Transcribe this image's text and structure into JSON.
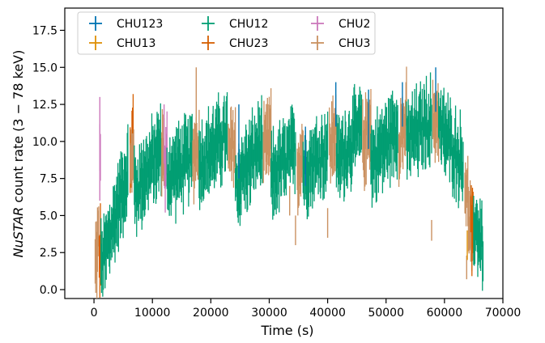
{
  "chart_data": {
    "type": "scatter",
    "xlabel": "Time (s)",
    "ylabel_prefix": "NuSTAR",
    "ylabel_suffix": " count rate (3 − 78 keV)",
    "xlim": [
      -5000,
      70000
    ],
    "ylim": [
      -0.6,
      19.0
    ],
    "xticks": [
      0,
      10000,
      20000,
      30000,
      40000,
      50000,
      60000,
      70000
    ],
    "xtick_labels": [
      "0",
      "10000",
      "20000",
      "30000",
      "40000",
      "50000",
      "60000",
      "70000"
    ],
    "yticks": [
      0.0,
      2.5,
      5.0,
      7.5,
      10.0,
      12.5,
      15.0,
      17.5
    ],
    "ytick_labels": [
      "0.0",
      "2.5",
      "5.0",
      "7.5",
      "10.0",
      "12.5",
      "15.0",
      "17.5"
    ],
    "legend_position": "top-left",
    "series": [
      {
        "name": "CHU123",
        "color": "#0173b2"
      },
      {
        "name": "CHU13",
        "color": "#de8f05"
      },
      {
        "name": "CHU12",
        "color": "#029e73"
      },
      {
        "name": "CHU23",
        "color": "#d55e00"
      },
      {
        "name": "CHU2",
        "color": "#cc78bc"
      },
      {
        "name": "CHU3",
        "color": "#ca9161"
      }
    ],
    "segments": [
      {
        "series": "CHU3",
        "x": [
          200,
          800
        ],
        "y": [
          1.5,
          3.5
        ]
      },
      {
        "series": "CHU23",
        "x": [
          900,
          1200
        ],
        "y": [
          2.0,
          3.0
        ]
      },
      {
        "series": "CHU2",
        "x": [
          1000,
          1100
        ],
        "y": [
          9.0,
          9.5
        ]
      },
      {
        "series": "CHU12",
        "x": [
          1200,
          5800
        ],
        "y": [
          1.5,
          8.0
        ]
      },
      {
        "series": "CHU23",
        "x": [
          6200,
          6700
        ],
        "y": [
          8.5,
          10.5
        ]
      },
      {
        "series": "CHU3",
        "x": [
          6200,
          6800
        ],
        "y": [
          8.0,
          10.0
        ]
      },
      {
        "series": "CHU12",
        "x": [
          6900,
          11500
        ],
        "y": [
          6.5,
          9.5
        ]
      },
      {
        "series": "CHU3",
        "x": [
          11600,
          12000
        ],
        "y": [
          9.0,
          10.0
        ]
      },
      {
        "series": "CHU2",
        "x": [
          12100,
          12500
        ],
        "y": [
          7.5,
          9.0
        ]
      },
      {
        "series": "CHU12",
        "x": [
          12500,
          16800
        ],
        "y": [
          7.5,
          9.0
        ]
      },
      {
        "series": "CHU3",
        "x": [
          16900,
          18000
        ],
        "y": [
          9.0,
          10.0
        ]
      },
      {
        "series": "CHU12",
        "x": [
          18000,
          22800
        ],
        "y": [
          8.5,
          10.5
        ]
      },
      {
        "series": "CHU3",
        "x": [
          23000,
          24200
        ],
        "y": [
          9.0,
          10.0
        ]
      },
      {
        "series": "CHU12",
        "x": [
          24200,
          28800
        ],
        "y": [
          7.0,
          10.0
        ]
      },
      {
        "series": "CHU3",
        "x": [
          29000,
          30300
        ],
        "y": [
          9.0,
          10.5
        ]
      },
      {
        "series": "CHU12",
        "x": [
          30300,
          34500
        ],
        "y": [
          7.5,
          9.5
        ]
      },
      {
        "series": "CHU3",
        "x": [
          34800,
          35800
        ],
        "y": [
          8.0,
          9.5
        ]
      },
      {
        "series": "CHU12",
        "x": [
          35800,
          40000
        ],
        "y": [
          8.0,
          9.5
        ]
      },
      {
        "series": "CHU3",
        "x": [
          40300,
          41500
        ],
        "y": [
          9.5,
          11.0
        ]
      },
      {
        "series": "CHU12",
        "x": [
          41500,
          45800
        ],
        "y": [
          8.5,
          11.0
        ]
      },
      {
        "series": "CHU3",
        "x": [
          46000,
          47400
        ],
        "y": [
          9.5,
          11.5
        ]
      },
      {
        "series": "CHU12",
        "x": [
          47400,
          52000
        ],
        "y": [
          8.5,
          11.0
        ]
      },
      {
        "series": "CHU3",
        "x": [
          52200,
          53500
        ],
        "y": [
          10.0,
          11.5
        ]
      },
      {
        "series": "CHU12",
        "x": [
          53500,
          57800
        ],
        "y": [
          10.0,
          11.5
        ]
      },
      {
        "series": "CHU3",
        "x": [
          58000,
          59000
        ],
        "y": [
          11.0,
          12.0
        ]
      },
      {
        "series": "CHU12",
        "x": [
          59000,
          63200
        ],
        "y": [
          11.0,
          8.5
        ]
      },
      {
        "series": "CHU3",
        "x": [
          63500,
          64800
        ],
        "y": [
          7.5,
          3.0
        ]
      },
      {
        "series": "CHU23",
        "x": [
          64500,
          65000
        ],
        "y": [
          4.5,
          3.0
        ]
      },
      {
        "series": "CHU12",
        "x": [
          65000,
          66600
        ],
        "y": [
          4.5,
          3.0
        ]
      }
    ],
    "accents": [
      {
        "series": "CHU2",
        "x": 1000,
        "y": 9.5,
        "err": 3.5
      },
      {
        "series": "CHU2",
        "x": 12000,
        "y": 10.5,
        "err": 2.0
      },
      {
        "series": "CHU123",
        "x": 24800,
        "y": 10.0,
        "err": 2.5
      },
      {
        "series": "CHU123",
        "x": 36200,
        "y": 9.0,
        "err": 2.0
      },
      {
        "series": "CHU123",
        "x": 41400,
        "y": 12.5,
        "err": 1.5
      },
      {
        "series": "CHU123",
        "x": 47000,
        "y": 11.5,
        "err": 2.0
      },
      {
        "series": "CHU123",
        "x": 52800,
        "y": 12.5,
        "err": 1.5
      },
      {
        "series": "CHU123",
        "x": 58500,
        "y": 13.5,
        "err": 1.5
      },
      {
        "series": "CHU3",
        "x": 17500,
        "y": 12.0,
        "err": 3.0
      },
      {
        "series": "CHU3",
        "x": 33500,
        "y": 6.0,
        "err": 1.0
      },
      {
        "series": "CHU3",
        "x": 34500,
        "y": 4.0,
        "err": 1.0
      },
      {
        "series": "CHU3",
        "x": 40000,
        "y": 4.5,
        "err": 1.0
      },
      {
        "series": "CHU3",
        "x": 57800,
        "y": 4.0,
        "err": 0.7
      },
      {
        "series": "CHU3",
        "x": 63800,
        "y": 1.5,
        "err": 0.8
      },
      {
        "series": "CHU13",
        "x": 63900,
        "y": 3.0,
        "err": 1.0
      }
    ]
  }
}
